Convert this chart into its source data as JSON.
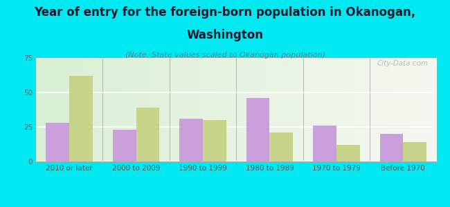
{
  "title_line1": "Year of entry for the foreign-born population in Okanogan,",
  "title_line2": "Washington",
  "subtitle": "(Note: State values scaled to Okanogan population)",
  "categories": [
    "2010 or later",
    "2000 to 2009",
    "1990 to 1999",
    "1980 to 1989",
    "1970 to 1979",
    "Before 1970"
  ],
  "okanogan_values": [
    28,
    23,
    31,
    46,
    26,
    20
  ],
  "washington_values": [
    62,
    39,
    30,
    21,
    12,
    14
  ],
  "okanogan_color": "#c9a0dc",
  "washington_color": "#c8d48a",
  "background_color": "#00e8f0",
  "plot_bg_left": "#d8efd4",
  "plot_bg_right": "#f5f8f0",
  "ylim": [
    0,
    75
  ],
  "yticks": [
    0,
    25,
    50,
    75
  ],
  "title_fontsize": 12,
  "subtitle_fontsize": 8,
  "legend_fontsize": 9,
  "tick_fontsize": 7.5,
  "bar_width": 0.35,
  "watermark": "City-Data.com"
}
